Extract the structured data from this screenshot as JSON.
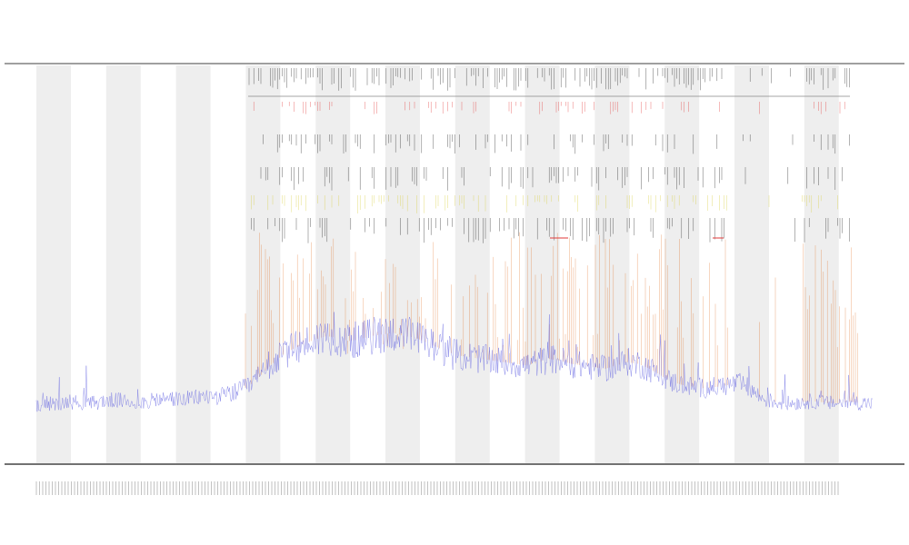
{
  "chart_data": {
    "type": "line",
    "title": "",
    "subtitle": "",
    "subtitle2": "",
    "xlabel": "",
    "ylabel": "",
    "shaded_bands": 12,
    "grid": false,
    "legend": {
      "placement": "left",
      "entries": []
    },
    "colors": {
      "trace": "#5a5ae0",
      "spikes": "#e06a1a",
      "marker_black": "#222222",
      "marker_red": "#e23a3a",
      "marker_yellow": "#d8d040",
      "band": "#eeeeee",
      "axis": "#555555"
    },
    "tracks": [
      {
        "name": "",
        "color": "#222222"
      },
      {
        "name": "",
        "color": "#e23a3a"
      },
      {
        "name": "",
        "color": "#222222"
      },
      {
        "name": "",
        "color": "#222222"
      },
      {
        "name": "",
        "color": "#d8d040"
      },
      {
        "name": "",
        "color": "#222222"
      }
    ],
    "series": [
      {
        "name": "",
        "values": [
          8,
          9,
          8,
          10,
          9,
          9,
          10,
          11,
          10,
          9,
          10,
          11,
          12,
          11,
          12,
          13,
          13,
          14,
          16,
          19,
          25,
          32,
          38,
          42,
          45,
          48,
          50,
          49,
          47,
          48,
          50,
          51,
          52,
          50,
          49,
          46,
          43,
          40,
          38,
          37,
          36,
          35,
          34,
          33,
          32,
          34,
          36,
          35,
          33,
          32,
          31,
          30,
          32,
          34,
          33,
          30,
          26,
          22,
          20,
          19,
          18,
          19,
          20,
          21,
          18,
          12,
          10,
          9,
          9,
          10,
          10,
          9,
          9,
          10,
          9,
          9
        ]
      }
    ]
  }
}
